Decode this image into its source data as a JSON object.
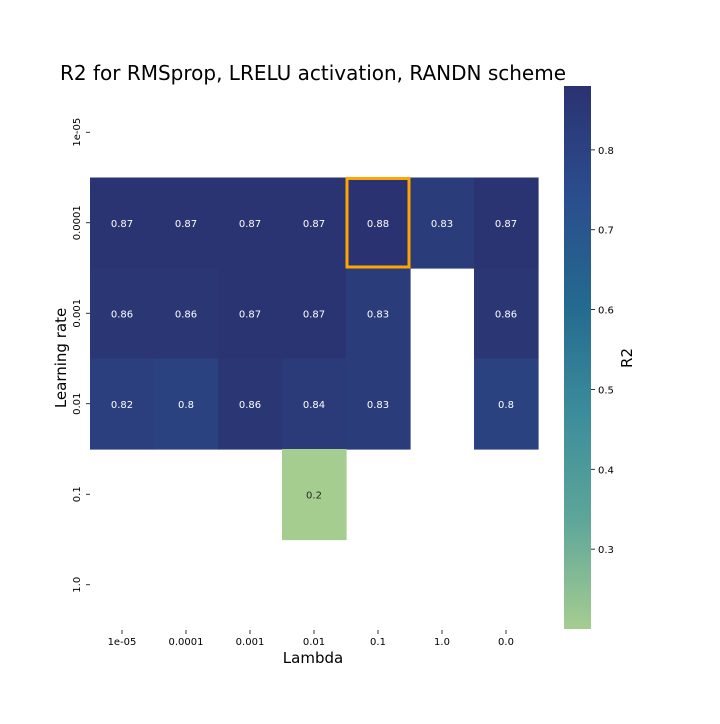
{
  "chart_data": {
    "type": "heatmap",
    "title": "R2 for RMSprop, LRELU activation, RANDN scheme",
    "xlabel": "Lambda",
    "ylabel": "Learning rate",
    "x_categories": [
      "1e-05",
      "0.0001",
      "0.001",
      "0.01",
      "0.1",
      "1.0",
      "0.0"
    ],
    "y_categories": [
      "1e-05",
      "0.0001",
      "0.001",
      "0.01",
      "0.1",
      "1.0"
    ],
    "values": [
      [
        null,
        null,
        null,
        null,
        null,
        null,
        null
      ],
      [
        0.87,
        0.87,
        0.87,
        0.87,
        0.88,
        0.83,
        0.87
      ],
      [
        0.86,
        0.86,
        0.87,
        0.87,
        0.83,
        null,
        0.86
      ],
      [
        0.82,
        0.8,
        0.86,
        0.84,
        0.83,
        null,
        0.8
      ],
      [
        null,
        null,
        null,
        0.2,
        null,
        null,
        null
      ],
      [
        null,
        null,
        null,
        null,
        null,
        null,
        null
      ]
    ],
    "highlight": {
      "x_category": "0.1",
      "y_category": "0.0001",
      "color": "#ffa500"
    },
    "colorbar": {
      "label": "R2",
      "min": 0.2,
      "max": 0.88,
      "ticks": [
        "0.3",
        "0.4",
        "0.5",
        "0.6",
        "0.7",
        "0.8"
      ],
      "colormap": "crest",
      "colormap_stops": [
        "#a5cd90",
        "#5ea69a",
        "#3b8c9b",
        "#24698f",
        "#2b4d8d",
        "#2b3271"
      ]
    }
  }
}
